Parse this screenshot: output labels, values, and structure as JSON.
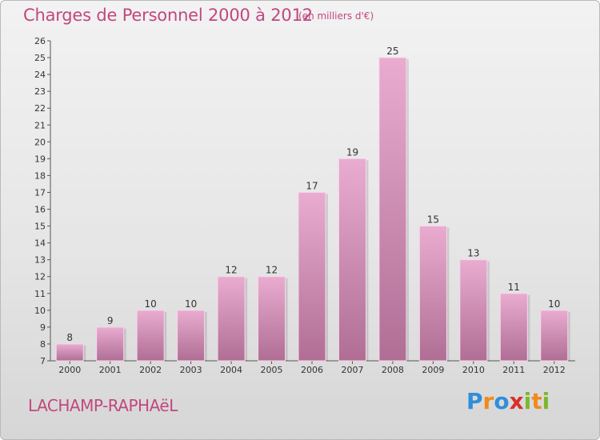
{
  "header": {
    "title": "Charges de Personnel 2000 à 2012",
    "subtitle": "(en milliers d'€)"
  },
  "footer": {
    "commune": "LACHAMP-RAPHAëL",
    "logo_letters": [
      "P",
      "r",
      "o",
      "x",
      "i",
      "t",
      "i"
    ],
    "logo_colors": [
      "#2f8fd8",
      "#f08a1c",
      "#2f8fd8",
      "#d9302a",
      "#7ab82e",
      "#f08a1c",
      "#7ab82e"
    ]
  },
  "colors": {
    "bar_top": "#e9acd0",
    "bar_bottom": "#b06e95",
    "accent": "#c2477f"
  },
  "chart_data": {
    "type": "bar",
    "categories": [
      "2000",
      "2001",
      "2002",
      "2003",
      "2004",
      "2005",
      "2006",
      "2007",
      "2008",
      "2009",
      "2010",
      "2011",
      "2012"
    ],
    "values": [
      8,
      9,
      10,
      10,
      12,
      12,
      17,
      19,
      25,
      15,
      13,
      11,
      10
    ],
    "ylim": [
      7,
      26
    ],
    "yticks": [
      7,
      8,
      9,
      10,
      11,
      12,
      13,
      14,
      15,
      16,
      17,
      18,
      19,
      20,
      21,
      22,
      23,
      24,
      25,
      26
    ],
    "grid": false
  }
}
